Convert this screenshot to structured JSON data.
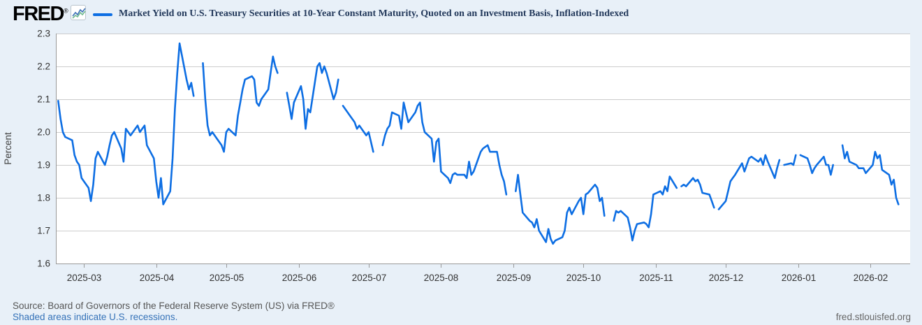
{
  "header": {
    "logo_text": "FRED",
    "registered_mark": "®",
    "legend_label": "Market Yield on U.S. Treasury Securities at 10-Year Constant Maturity, Quoted on an Investment Basis, Inflation-Indexed"
  },
  "footer": {
    "source_text": "Source: Board of Governors of the Federal Reserve System (US) via FRED®",
    "recession_note": "Shaded areas indicate U.S. recessions.",
    "site_url": "fred.stlouisfed.org"
  },
  "colors": {
    "page_background": "#e8f0f8",
    "plot_background": "#ffffff",
    "line": "#0d6ee3",
    "gridline": "#cccccc",
    "axis_line": "#999999",
    "tick_text": "#333333",
    "axis_title_text": "#444444",
    "title_text": "#23395b",
    "source_text": "#555555",
    "link_text": "#3572b8"
  },
  "chart_data": {
    "type": "line",
    "title": "Market Yield on U.S. Treasury Securities at 10-Year Constant Maturity, Quoted on an Investment Basis, Inflation-Indexed",
    "ylabel": "Percent",
    "grid": "horizontal",
    "legend_position": "top",
    "y_axis": {
      "min": 1.6,
      "max": 2.3,
      "ticks": [
        "2.3",
        "2.2",
        "2.1",
        "2.0",
        "1.9",
        "1.8",
        "1.7",
        "1.6"
      ]
    },
    "x_axis": {
      "start": "2025-02-17",
      "end": "2026-02-18",
      "tick_labels": [
        "2025-03",
        "2025-04",
        "2025-05",
        "2025-06",
        "2025-07",
        "2025-08",
        "2025-09",
        "2025-10",
        "2025-11",
        "2025-12",
        "2026-01",
        "2026-02"
      ]
    },
    "series": [
      {
        "name": "Market Yield on U.S. Treasury Securities at 10-Year Constant Maturity, Quoted on an Investment Basis, Inflation-Indexed",
        "units": "Percent",
        "observations": [
          [
            "2025-02-18",
            2.095
          ],
          [
            "2025-02-19",
            2.04
          ],
          [
            "2025-02-20",
            2.0
          ],
          [
            "2025-02-21",
            1.985
          ],
          [
            "2025-02-24",
            1.975
          ],
          [
            "2025-02-25",
            1.93
          ],
          [
            "2025-02-26",
            1.91
          ],
          [
            "2025-02-27",
            1.9
          ],
          [
            "2025-02-28",
            1.86
          ],
          [
            "2025-03-03",
            1.83
          ],
          [
            "2025-03-04",
            1.79
          ],
          [
            "2025-03-05",
            1.84
          ],
          [
            "2025-03-06",
            1.92
          ],
          [
            "2025-03-07",
            1.94
          ],
          [
            "2025-03-10",
            1.9
          ],
          [
            "2025-03-11",
            1.925
          ],
          [
            "2025-03-12",
            1.96
          ],
          [
            "2025-03-13",
            1.99
          ],
          [
            "2025-03-14",
            2.0
          ],
          [
            "2025-03-17",
            1.95
          ],
          [
            "2025-03-18",
            1.91
          ],
          [
            "2025-03-19",
            2.01
          ],
          [
            "2025-03-20",
            2.0
          ],
          [
            "2025-03-21",
            1.99
          ],
          [
            "2025-03-24",
            2.02
          ],
          [
            "2025-03-25",
            2.0
          ],
          [
            "2025-03-26",
            2.01
          ],
          [
            "2025-03-27",
            2.02
          ],
          [
            "2025-03-28",
            1.96
          ],
          [
            "2025-03-31",
            1.92
          ],
          [
            "2025-04-01",
            1.85
          ],
          [
            "2025-04-02",
            1.8
          ],
          [
            "2025-04-03",
            1.86
          ],
          [
            "2025-04-04",
            1.78
          ],
          [
            "2025-04-07",
            1.82
          ],
          [
            "2025-04-08",
            1.92
          ],
          [
            "2025-04-09",
            2.07
          ],
          [
            "2025-04-10",
            2.18
          ],
          [
            "2025-04-11",
            2.27
          ],
          [
            "2025-04-14",
            2.16
          ],
          [
            "2025-04-15",
            2.13
          ],
          [
            "2025-04-16",
            2.15
          ],
          [
            "2025-04-17",
            2.11
          ],
          [
            "2025-04-18",
            null
          ],
          [
            "2025-04-21",
            2.21
          ],
          [
            "2025-04-22",
            2.1
          ],
          [
            "2025-04-23",
            2.02
          ],
          [
            "2025-04-24",
            1.99
          ],
          [
            "2025-04-25",
            2.0
          ],
          [
            "2025-04-28",
            1.97
          ],
          [
            "2025-04-29",
            1.96
          ],
          [
            "2025-04-30",
            1.94
          ],
          [
            "2025-05-01",
            2.0
          ],
          [
            "2025-05-02",
            2.01
          ],
          [
            "2025-05-05",
            1.99
          ],
          [
            "2025-05-06",
            2.05
          ],
          [
            "2025-05-07",
            2.09
          ],
          [
            "2025-05-08",
            2.13
          ],
          [
            "2025-05-09",
            2.16
          ],
          [
            "2025-05-12",
            2.17
          ],
          [
            "2025-05-13",
            2.16
          ],
          [
            "2025-05-14",
            2.09
          ],
          [
            "2025-05-15",
            2.08
          ],
          [
            "2025-05-16",
            2.1
          ],
          [
            "2025-05-19",
            2.13
          ],
          [
            "2025-05-20",
            2.18
          ],
          [
            "2025-05-21",
            2.23
          ],
          [
            "2025-05-22",
            2.2
          ],
          [
            "2025-05-23",
            2.18
          ],
          [
            "2025-05-26",
            null
          ],
          [
            "2025-05-27",
            2.12
          ],
          [
            "2025-05-28",
            2.08
          ],
          [
            "2025-05-29",
            2.04
          ],
          [
            "2025-05-30",
            2.09
          ],
          [
            "2025-06-02",
            2.14
          ],
          [
            "2025-06-03",
            2.1
          ],
          [
            "2025-06-04",
            2.01
          ],
          [
            "2025-06-05",
            2.07
          ],
          [
            "2025-06-06",
            2.06
          ],
          [
            "2025-06-09",
            2.2
          ],
          [
            "2025-06-10",
            2.21
          ],
          [
            "2025-06-11",
            2.18
          ],
          [
            "2025-06-12",
            2.2
          ],
          [
            "2025-06-13",
            2.18
          ],
          [
            "2025-06-16",
            2.1
          ],
          [
            "2025-06-17",
            2.12
          ],
          [
            "2025-06-18",
            2.16
          ],
          [
            "2025-06-19",
            null
          ],
          [
            "2025-06-20",
            2.08
          ],
          [
            "2025-06-23",
            2.05
          ],
          [
            "2025-06-24",
            2.04
          ],
          [
            "2025-06-25",
            2.03
          ],
          [
            "2025-06-26",
            2.01
          ],
          [
            "2025-06-27",
            2.02
          ],
          [
            "2025-06-30",
            1.99
          ],
          [
            "2025-07-01",
            2.0
          ],
          [
            "2025-07-02",
            1.97
          ],
          [
            "2025-07-03",
            1.94
          ],
          [
            "2025-07-04",
            null
          ],
          [
            "2025-07-07",
            1.96
          ],
          [
            "2025-07-08",
            1.99
          ],
          [
            "2025-07-09",
            2.01
          ],
          [
            "2025-07-10",
            2.02
          ],
          [
            "2025-07-11",
            2.06
          ],
          [
            "2025-07-14",
            2.05
          ],
          [
            "2025-07-15",
            2.01
          ],
          [
            "2025-07-16",
            2.09
          ],
          [
            "2025-07-17",
            2.06
          ],
          [
            "2025-07-18",
            2.03
          ],
          [
            "2025-07-21",
            2.06
          ],
          [
            "2025-07-22",
            2.08
          ],
          [
            "2025-07-23",
            2.09
          ],
          [
            "2025-07-24",
            2.03
          ],
          [
            "2025-07-25",
            2.0
          ],
          [
            "2025-07-28",
            1.98
          ],
          [
            "2025-07-29",
            1.91
          ],
          [
            "2025-07-30",
            1.97
          ],
          [
            "2025-07-31",
            1.98
          ],
          [
            "2025-08-01",
            1.88
          ],
          [
            "2025-08-04",
            1.86
          ],
          [
            "2025-08-05",
            1.845
          ],
          [
            "2025-08-06",
            1.87
          ],
          [
            "2025-08-07",
            1.875
          ],
          [
            "2025-08-08",
            1.87
          ],
          [
            "2025-08-11",
            1.87
          ],
          [
            "2025-08-12",
            1.86
          ],
          [
            "2025-08-13",
            1.91
          ],
          [
            "2025-08-14",
            1.87
          ],
          [
            "2025-08-15",
            1.88
          ],
          [
            "2025-08-18",
            1.94
          ],
          [
            "2025-08-19",
            1.95
          ],
          [
            "2025-08-20",
            1.955
          ],
          [
            "2025-08-21",
            1.96
          ],
          [
            "2025-08-22",
            1.94
          ],
          [
            "2025-08-25",
            1.94
          ],
          [
            "2025-08-26",
            1.9
          ],
          [
            "2025-08-27",
            1.87
          ],
          [
            "2025-08-28",
            1.85
          ],
          [
            "2025-08-29",
            1.81
          ],
          [
            "2025-09-01",
            null
          ],
          [
            "2025-09-02",
            1.82
          ],
          [
            "2025-09-03",
            1.87
          ],
          [
            "2025-09-04",
            1.81
          ],
          [
            "2025-09-05",
            1.755
          ],
          [
            "2025-09-08",
            1.73
          ],
          [
            "2025-09-09",
            1.725
          ],
          [
            "2025-09-10",
            1.71
          ],
          [
            "2025-09-11",
            1.735
          ],
          [
            "2025-09-12",
            1.7
          ],
          [
            "2025-09-15",
            1.665
          ],
          [
            "2025-09-16",
            1.705
          ],
          [
            "2025-09-17",
            1.675
          ],
          [
            "2025-09-18",
            1.66
          ],
          [
            "2025-09-19",
            1.67
          ],
          [
            "2025-09-22",
            1.68
          ],
          [
            "2025-09-23",
            1.7
          ],
          [
            "2025-09-24",
            1.755
          ],
          [
            "2025-09-25",
            1.77
          ],
          [
            "2025-09-26",
            1.75
          ],
          [
            "2025-09-29",
            1.79
          ],
          [
            "2025-09-30",
            1.8
          ],
          [
            "2025-10-01",
            1.75
          ],
          [
            "2025-10-02",
            1.81
          ],
          [
            "2025-10-03",
            1.815
          ],
          [
            "2025-10-06",
            1.84
          ],
          [
            "2025-10-07",
            1.83
          ],
          [
            "2025-10-08",
            1.79
          ],
          [
            "2025-10-09",
            1.8
          ],
          [
            "2025-10-10",
            1.745
          ],
          [
            "2025-10-13",
            null
          ],
          [
            "2025-10-14",
            1.73
          ],
          [
            "2025-10-15",
            1.76
          ],
          [
            "2025-10-16",
            1.755
          ],
          [
            "2025-10-17",
            1.76
          ],
          [
            "2025-10-20",
            1.74
          ],
          [
            "2025-10-21",
            1.71
          ],
          [
            "2025-10-22",
            1.67
          ],
          [
            "2025-10-23",
            1.7
          ],
          [
            "2025-10-24",
            1.72
          ],
          [
            "2025-10-27",
            1.725
          ],
          [
            "2025-10-28",
            1.72
          ],
          [
            "2025-10-29",
            1.71
          ],
          [
            "2025-10-30",
            1.75
          ],
          [
            "2025-10-31",
            1.81
          ],
          [
            "2025-11-03",
            1.82
          ],
          [
            "2025-11-04",
            1.81
          ],
          [
            "2025-11-05",
            1.835
          ],
          [
            "2025-11-06",
            1.82
          ],
          [
            "2025-11-07",
            1.865
          ],
          [
            "2025-11-10",
            1.83
          ],
          [
            "2025-11-11",
            null
          ],
          [
            "2025-11-12",
            1.835
          ],
          [
            "2025-11-13",
            1.84
          ],
          [
            "2025-11-14",
            1.835
          ],
          [
            "2025-11-17",
            1.86
          ],
          [
            "2025-11-18",
            1.85
          ],
          [
            "2025-11-19",
            1.855
          ],
          [
            "2025-11-20",
            1.84
          ],
          [
            "2025-11-21",
            1.815
          ],
          [
            "2025-11-24",
            1.81
          ],
          [
            "2025-11-25",
            1.79
          ],
          [
            "2025-11-26",
            1.77
          ],
          [
            "2025-11-27",
            null
          ],
          [
            "2025-11-28",
            1.765
          ],
          [
            "2025-12-01",
            1.79
          ],
          [
            "2025-12-02",
            1.82
          ],
          [
            "2025-12-03",
            1.85
          ],
          [
            "2025-12-04",
            1.86
          ],
          [
            "2025-12-05",
            1.87
          ],
          [
            "2025-12-08",
            1.905
          ],
          [
            "2025-12-09",
            1.88
          ],
          [
            "2025-12-10",
            1.9
          ],
          [
            "2025-12-11",
            1.92
          ],
          [
            "2025-12-12",
            1.925
          ],
          [
            "2025-12-15",
            1.91
          ],
          [
            "2025-12-16",
            1.92
          ],
          [
            "2025-12-17",
            1.9
          ],
          [
            "2025-12-18",
            1.93
          ],
          [
            "2025-12-19",
            1.91
          ],
          [
            "2025-12-22",
            1.86
          ],
          [
            "2025-12-23",
            1.89
          ],
          [
            "2025-12-24",
            1.915
          ],
          [
            "2025-12-25",
            null
          ],
          [
            "2025-12-26",
            1.9
          ],
          [
            "2025-12-29",
            1.905
          ],
          [
            "2025-12-30",
            1.9
          ],
          [
            "2025-12-31",
            1.93
          ],
          [
            "2026-01-01",
            null
          ],
          [
            "2026-01-02",
            1.93
          ],
          [
            "2026-01-05",
            1.92
          ],
          [
            "2026-01-06",
            1.9
          ],
          [
            "2026-01-07",
            1.875
          ],
          [
            "2026-01-08",
            1.89
          ],
          [
            "2026-01-09",
            1.9
          ],
          [
            "2026-01-12",
            1.925
          ],
          [
            "2026-01-13",
            1.9
          ],
          [
            "2026-01-14",
            1.9
          ],
          [
            "2026-01-15",
            1.87
          ],
          [
            "2026-01-16",
            1.9
          ],
          [
            "2026-01-19",
            null
          ],
          [
            "2026-01-20",
            1.96
          ],
          [
            "2026-01-21",
            1.92
          ],
          [
            "2026-01-22",
            1.94
          ],
          [
            "2026-01-23",
            1.91
          ],
          [
            "2026-01-26",
            1.9
          ],
          [
            "2026-01-27",
            1.89
          ],
          [
            "2026-01-28",
            1.89
          ],
          [
            "2026-01-29",
            1.89
          ],
          [
            "2026-01-30",
            1.875
          ],
          [
            "2026-02-02",
            1.9
          ],
          [
            "2026-02-03",
            1.94
          ],
          [
            "2026-02-04",
            1.92
          ],
          [
            "2026-02-05",
            1.93
          ],
          [
            "2026-02-06",
            1.885
          ],
          [
            "2026-02-09",
            1.87
          ],
          [
            "2026-02-10",
            1.84
          ],
          [
            "2026-02-11",
            1.855
          ],
          [
            "2026-02-12",
            1.8
          ],
          [
            "2026-02-13",
            1.78
          ],
          [
            "2026-02-16",
            null
          ],
          [
            "2026-02-17",
            1.77
          ]
        ]
      }
    ]
  }
}
